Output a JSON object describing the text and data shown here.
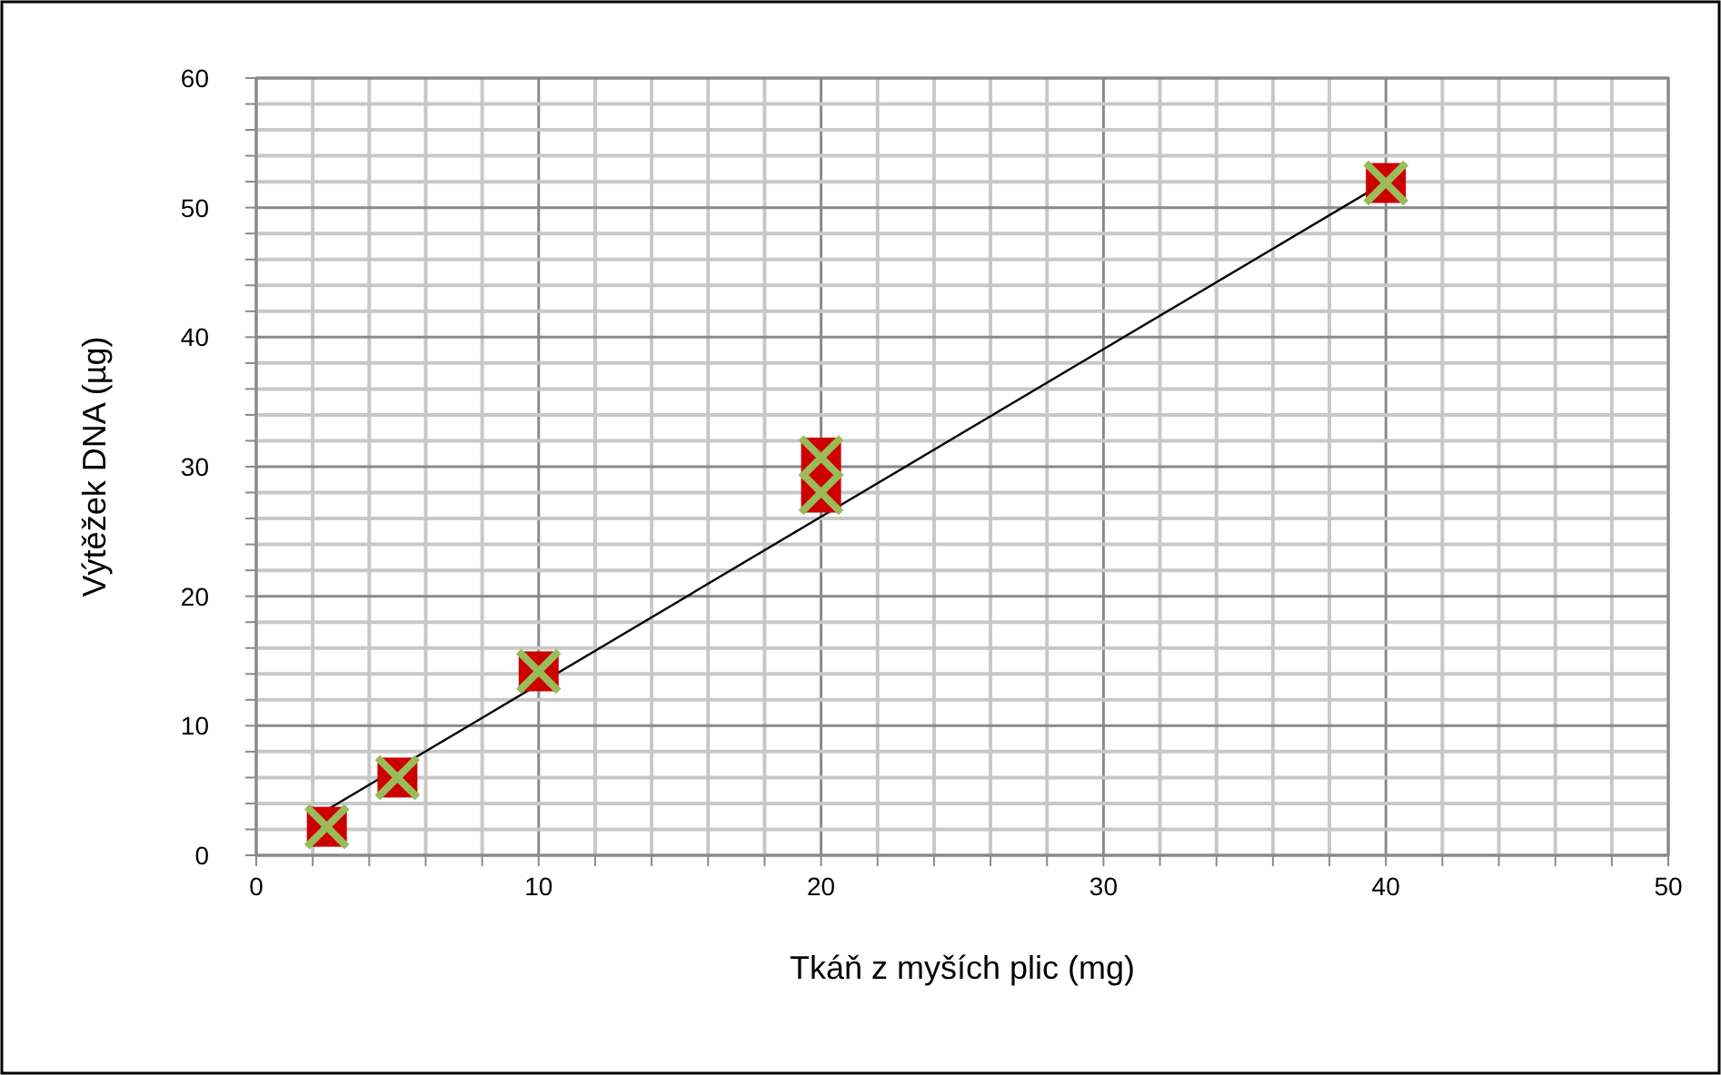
{
  "chart_data": {
    "type": "scatter",
    "xlabel": "Tkáň z myších plic (mg)",
    "ylabel": "Výtěžek DNA (µg)",
    "xlim": [
      0,
      50
    ],
    "ylim": [
      0,
      60
    ],
    "xticks": [
      0,
      {
        "value": 2,
        "label": null
      },
      {
        "value": 4,
        "label": null
      },
      {
        "value": 6,
        "label": null
      },
      {
        "value": 8,
        "label": null
      },
      10,
      {
        "value": 12,
        "label": null
      },
      {
        "value": 14,
        "label": null
      },
      {
        "value": 16,
        "label": null
      },
      {
        "value": 18,
        "label": null
      },
      20,
      {
        "value": 22,
        "label": null
      },
      {
        "value": 24,
        "label": null
      },
      {
        "value": 26,
        "label": null
      },
      {
        "value": 28,
        "label": null
      },
      30,
      {
        "value": 32,
        "label": null
      },
      {
        "value": 34,
        "label": null
      },
      {
        "value": 36,
        "label": null
      },
      {
        "value": 38,
        "label": null
      },
      40,
      {
        "value": 42,
        "label": null
      },
      {
        "value": 44,
        "label": null
      },
      {
        "value": 46,
        "label": null
      },
      {
        "value": 48,
        "label": null
      },
      50
    ],
    "yticks": [
      0,
      {
        "value": 2,
        "label": null
      },
      {
        "value": 4,
        "label": null
      },
      {
        "value": 6,
        "label": null
      },
      {
        "value": 8,
        "label": null
      },
      10,
      {
        "value": 12,
        "label": null
      },
      {
        "value": 14,
        "label": null
      },
      {
        "value": 16,
        "label": null
      },
      {
        "value": 18,
        "label": null
      },
      20,
      {
        "value": 22,
        "label": null
      },
      {
        "value": 24,
        "label": null
      },
      {
        "value": 26,
        "label": null
      },
      {
        "value": 28,
        "label": null
      },
      30,
      {
        "value": 32,
        "label": null
      },
      {
        "value": 34,
        "label": null
      },
      {
        "value": 36,
        "label": null
      },
      {
        "value": 38,
        "label": null
      },
      40,
      {
        "value": 42,
        "label": null
      },
      {
        "value": 44,
        "label": null
      },
      {
        "value": 46,
        "label": null
      },
      {
        "value": 48,
        "label": null
      },
      50,
      {
        "value": 52,
        "label": null
      },
      {
        "value": 54,
        "label": null
      },
      {
        "value": 56,
        "label": null
      },
      {
        "value": 58,
        "label": null
      },
      60
    ],
    "grid": true,
    "series": [
      {
        "type": "line",
        "color": "#000000",
        "line_style": "solid",
        "x": [
          2.5,
          40
        ],
        "values": [
          3.5,
          52
        ]
      },
      {
        "color": "#cc0000",
        "marker": "square",
        "x": [
          2.5,
          5,
          10,
          20,
          20,
          40
        ],
        "values": [
          2.2,
          6,
          14.2,
          28,
          30.7,
          51.9
        ]
      },
      {
        "color": "#9bbb59",
        "marker": "cross",
        "x": [
          2.5,
          5,
          10,
          20,
          20,
          40
        ],
        "values": [
          2.2,
          6,
          14.2,
          28,
          30.7,
          51.9
        ]
      }
    ]
  }
}
